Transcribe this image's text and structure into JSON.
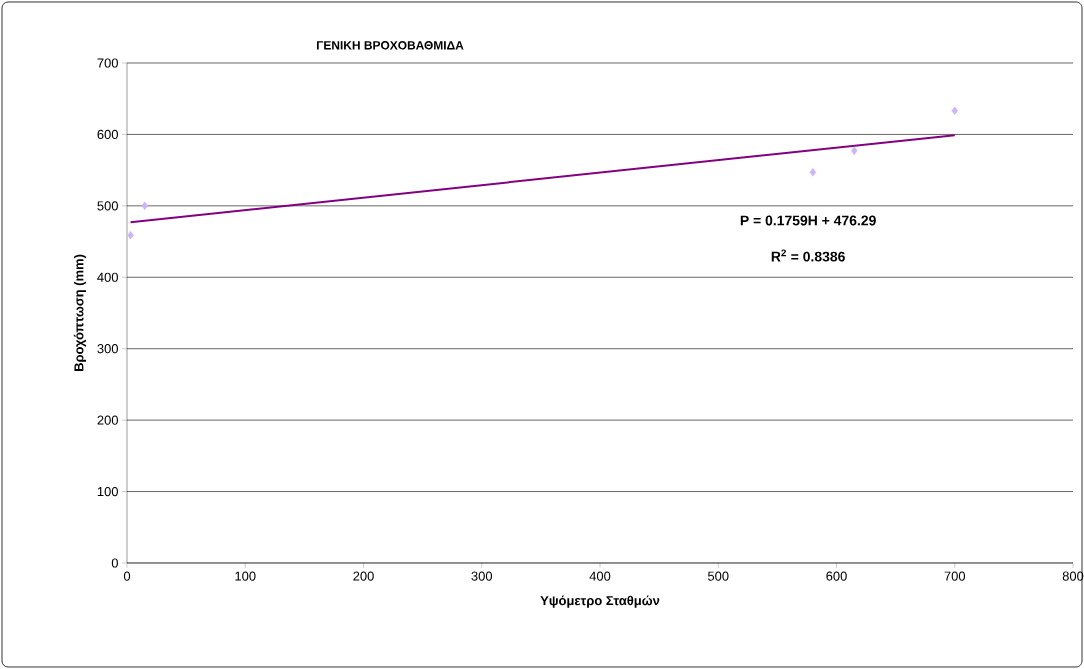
{
  "chart_data": {
    "type": "scatter",
    "title": "ΓΕΝΙΚΗ ΒΡΟΧΟΒΑΘΜΙΔΑ",
    "xlabel": "Υψόμετρο Σταθμών",
    "ylabel": "Βροχόπτωση (mm)",
    "series": [
      {
        "type": "scatter",
        "color": "#ccb3ff",
        "marker": "diamond",
        "x": [
          3,
          15,
          580,
          615,
          700
        ],
        "values": [
          459,
          500,
          547,
          577,
          633
        ]
      },
      {
        "type": "line",
        "color": "#800080",
        "marker": "none",
        "line_style": "solid",
        "x": [
          3,
          700
        ],
        "values": [
          477,
          599
        ]
      }
    ],
    "annotations": [
      "P = 0.1759H + 476.29",
      "R$^{2}$ = 0.8386"
    ],
    "xlim": [
      0,
      800
    ],
    "ylim": [
      0,
      700
    ],
    "xticks": [
      0,
      100,
      200,
      300,
      400,
      500,
      600,
      700,
      800
    ],
    "yticks": [
      0,
      100,
      200,
      300,
      400,
      500,
      600,
      700
    ],
    "grid": "y"
  }
}
